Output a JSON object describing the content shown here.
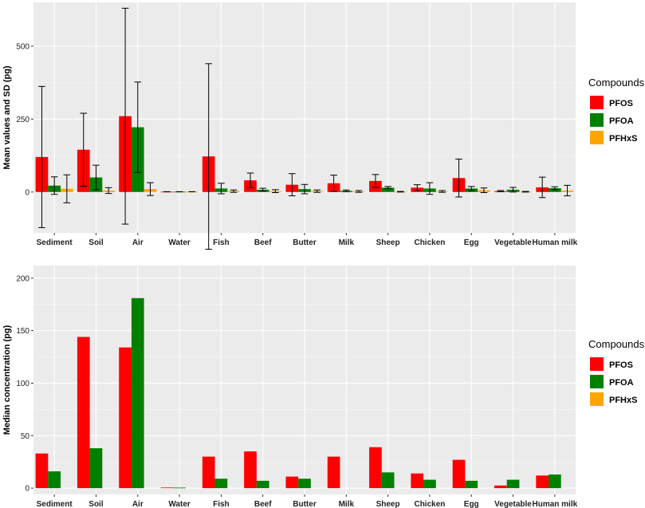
{
  "chart_data": [
    {
      "type": "bar",
      "ylabel": "Mean values and SD (pg)",
      "ylim": [
        -140,
        650
      ],
      "yticks": [
        0,
        250,
        500
      ],
      "grid": true,
      "legend_position": "right",
      "legend": {
        "title": "Compounds",
        "entries": [
          "PFOS",
          "PFOA",
          "PFHxS"
        ]
      },
      "categories": [
        "Sediment",
        "Soil",
        "Air",
        "Water",
        "Fish",
        "Beef",
        "Butter",
        "Milk",
        "Sheep",
        "Chicken",
        "Egg",
        "Vegetable",
        "Human milk"
      ],
      "series": [
        {
          "name": "PFOS",
          "color": "#ff0000",
          "values": [
            120,
            145,
            260,
            1,
            122,
            40,
            25,
            30,
            38,
            15,
            48,
            3,
            16
          ],
          "sd": [
            242,
            125,
            370,
            0,
            318,
            25,
            38,
            28,
            22,
            10,
            65,
            2,
            35
          ]
        },
        {
          "name": "PFOA",
          "color": "#008000",
          "values": [
            22,
            50,
            222,
            1,
            12,
            8,
            10,
            4,
            15,
            12,
            12,
            8,
            13
          ],
          "sd": [
            30,
            42,
            155,
            0,
            18,
            5,
            16,
            3,
            4,
            20,
            7,
            8,
            5
          ]
        },
        {
          "name": "PFHxS",
          "color": "#ffa500",
          "values": [
            11,
            5,
            10,
            1,
            3,
            3,
            3,
            2,
            1,
            2,
            6,
            1,
            5
          ],
          "sd": [
            48,
            10,
            22,
            0,
            4,
            5,
            4,
            3,
            1,
            3,
            8,
            1,
            18
          ]
        }
      ]
    },
    {
      "type": "bar",
      "ylabel": "Median concentration (pg)",
      "ylim": [
        -6,
        212
      ],
      "yticks": [
        0,
        50,
        100,
        150,
        200
      ],
      "grid": true,
      "legend_position": "right",
      "legend": {
        "title": "Compounds",
        "entries": [
          "PFOS",
          "PFOA",
          "PFHxS"
        ]
      },
      "categories": [
        "Sediment",
        "Soil",
        "Air",
        "Water",
        "Fish",
        "Beef",
        "Butter",
        "Milk",
        "Sheep",
        "Chicken",
        "Egg",
        "Vegetable",
        "Human milk"
      ],
      "series": [
        {
          "name": "PFOS",
          "color": "#ff0000",
          "values": [
            33,
            144,
            134,
            0.6,
            30,
            35,
            11,
            30,
            39,
            14,
            27,
            2.5,
            12
          ]
        },
        {
          "name": "PFOA",
          "color": "#008000",
          "values": [
            16,
            38,
            181,
            0.5,
            9,
            7,
            9,
            0,
            15,
            8,
            7,
            8,
            13
          ]
        },
        {
          "name": "PFHxS",
          "color": "#ffa500",
          "values": [
            0,
            0,
            0,
            0,
            0,
            0,
            0,
            0,
            0,
            0,
            0,
            0,
            0
          ]
        }
      ]
    }
  ]
}
